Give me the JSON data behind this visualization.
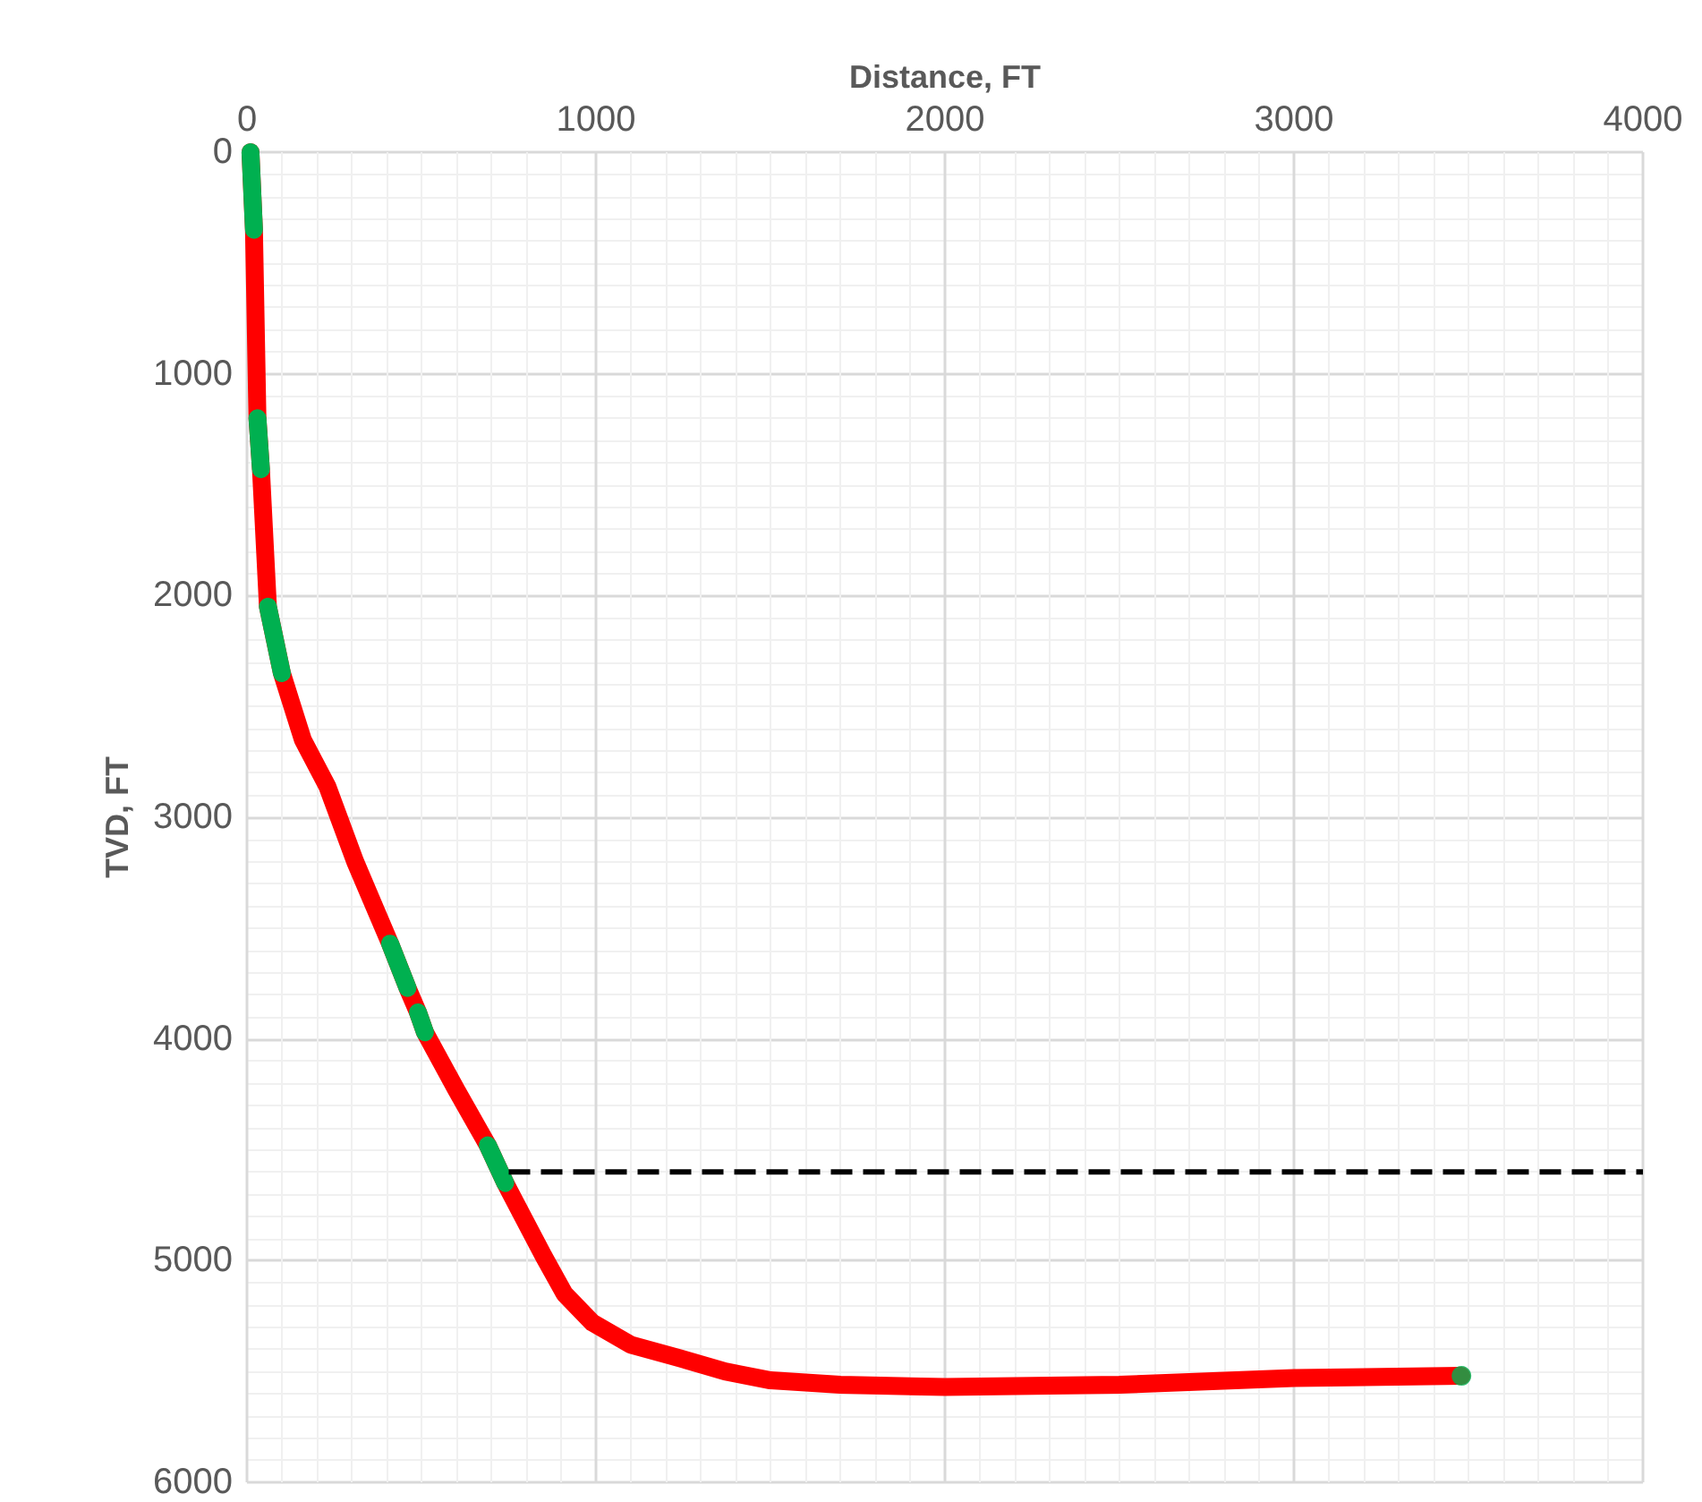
{
  "chart_data": {
    "type": "line",
    "xlabel": "Distance, FT",
    "ylabel": "TVD, FT",
    "xlim": [
      0,
      4000
    ],
    "xticks": [
      0,
      1000,
      2000,
      3000,
      4000
    ],
    "ylim": [
      6000,
      0
    ],
    "yticks": [
      0,
      1000,
      2000,
      3000,
      4000,
      5000,
      6000
    ],
    "grid": true,
    "marker": "none",
    "line_style": "solid",
    "series": [
      {
        "color": "#ff0000",
        "x": [
          10,
          20,
          30,
          40,
          60,
          100,
          130,
          160,
          230,
          310,
          410,
          460,
          490,
          510,
          600,
          690,
          740,
          790,
          850,
          910,
          990,
          1100,
          1240,
          1370,
          1500,
          1700,
          2000,
          2500,
          3000,
          3480
        ],
        "values": [
          0,
          350,
          1200,
          1430,
          2050,
          2350,
          2500,
          2650,
          2860,
          3200,
          3570,
          3770,
          3880,
          3970,
          4230,
          4480,
          4650,
          4800,
          4980,
          5150,
          5280,
          5380,
          5440,
          5500,
          5540,
          5560,
          5570,
          5560,
          5530,
          5520
        ]
      },
      {
        "color": "#00b050",
        "x": [
          10,
          20,
          null,
          30,
          40,
          null,
          60,
          100,
          null,
          410,
          460,
          null,
          490,
          510,
          null,
          690,
          740
        ],
        "values": [
          0,
          350,
          null,
          1200,
          1430,
          null,
          2050,
          2350,
          null,
          3570,
          3770,
          null,
          3880,
          3970,
          null,
          4480,
          4650
        ]
      },
      {
        "type": "scatter",
        "color": "#00b050",
        "marker": "circle",
        "x": [
          3480
        ],
        "values": [
          5520
        ]
      },
      {
        "color": "#000000",
        "line_style": "dashed",
        "x": [
          750,
          4000
        ],
        "values": [
          4600,
          4600
        ]
      }
    ]
  }
}
